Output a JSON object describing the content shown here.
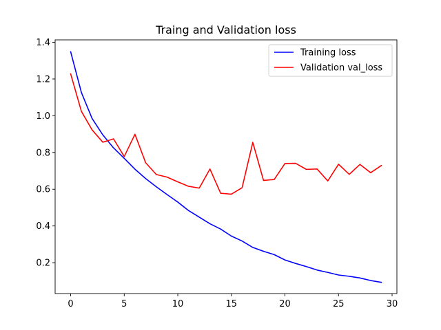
{
  "chart_data": {
    "type": "line",
    "title": "Traing and Validation loss",
    "xlabel": "",
    "ylabel": "",
    "xlim": [
      -1.45,
      30.45
    ],
    "ylim": [
      0.032,
      1.413
    ],
    "xticks": [
      0,
      5,
      10,
      15,
      20,
      25,
      30
    ],
    "yticks": [
      0.2,
      0.4,
      0.6,
      0.8,
      1.0,
      1.2,
      1.4
    ],
    "ytick_labels": [
      "0.2",
      "0.4",
      "0.6",
      "0.8",
      "1.0",
      "1.2",
      "1.4"
    ],
    "grid": false,
    "legend_position": "top-right",
    "x": [
      0,
      1,
      2,
      3,
      4,
      5,
      6,
      7,
      8,
      9,
      10,
      11,
      12,
      13,
      14,
      15,
      16,
      17,
      18,
      19,
      20,
      21,
      22,
      23,
      24,
      25,
      26,
      27,
      28,
      29
    ],
    "series": [
      {
        "name": "Training loss",
        "color": "#0000ff",
        "values": [
          1.348,
          1.127,
          0.985,
          0.896,
          0.825,
          0.768,
          0.709,
          0.658,
          0.613,
          0.571,
          0.53,
          0.484,
          0.448,
          0.412,
          0.383,
          0.345,
          0.318,
          0.283,
          0.262,
          0.244,
          0.215,
          0.196,
          0.179,
          0.16,
          0.147,
          0.133,
          0.126,
          0.117,
          0.103,
          0.093
        ]
      },
      {
        "name": "Validation val_loss",
        "color": "#ff0000",
        "values": [
          1.228,
          1.024,
          0.923,
          0.856,
          0.874,
          0.778,
          0.899,
          0.744,
          0.68,
          0.666,
          0.64,
          0.616,
          0.606,
          0.71,
          0.578,
          0.573,
          0.608,
          0.855,
          0.648,
          0.653,
          0.74,
          0.741,
          0.708,
          0.71,
          0.645,
          0.736,
          0.681,
          0.735,
          0.69,
          0.729
        ]
      }
    ]
  }
}
